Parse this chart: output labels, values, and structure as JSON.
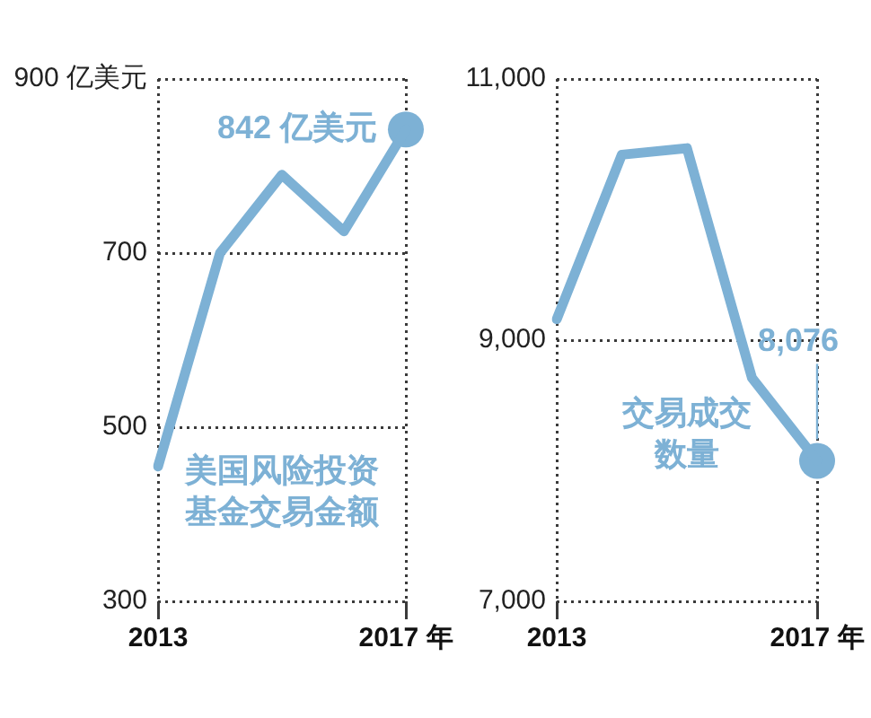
{
  "chart_data": [
    {
      "type": "line",
      "categories": [
        "2013",
        null,
        null,
        null,
        "2017 年"
      ],
      "series": [
        {
          "name": "美国风险投资基金交易金额",
          "color": "#7db1d5",
          "values": [
            455,
            700,
            790,
            725,
            842
          ]
        },
        {
          "type": "scatter",
          "marker": "circle",
          "color": "#7db1d5",
          "x": [
            "2017 年"
          ],
          "values": [
            842
          ],
          "value_labels": [
            "842 亿美元"
          ]
        }
      ],
      "ylim": [
        300,
        900
      ],
      "yticks": [
        300,
        500,
        700,
        {
          "value": 900,
          "label": "900 亿美元"
        }
      ],
      "grid": true,
      "marker": "none",
      "line_style": "solid",
      "legend": false
    },
    {
      "type": "line",
      "categories": [
        "2013",
        null,
        null,
        null,
        "2017 年"
      ],
      "series": [
        {
          "name": "交易成交数量",
          "color": "#7db1d5",
          "values": [
            9160,
            10420,
            10470,
            8710,
            8076
          ]
        },
        {
          "type": "scatter",
          "marker": "circle",
          "color": "#7db1d5",
          "x": [
            "2017 年"
          ],
          "values": [
            8076
          ],
          "value_labels": [
            "8,076"
          ]
        }
      ],
      "ylim": [
        7000,
        11000
      ],
      "yticks": [
        {
          "value": 7000,
          "label": "7,000"
        },
        {
          "value": 9000,
          "label": "9,000"
        },
        {
          "value": 11000,
          "label": "11,000"
        }
      ],
      "grid": true,
      "marker": "none",
      "line_style": "solid",
      "legend": false
    }
  ]
}
